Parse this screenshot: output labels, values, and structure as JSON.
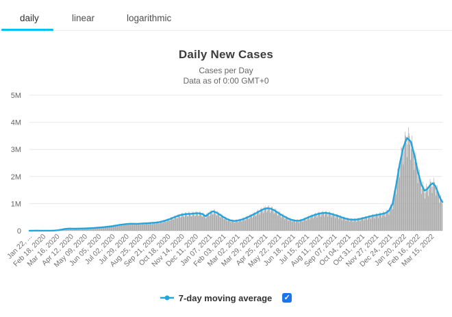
{
  "tabs": {
    "items": [
      {
        "label": "daily",
        "active": true
      },
      {
        "label": "linear",
        "active": false
      },
      {
        "label": "logarithmic",
        "active": false
      }
    ]
  },
  "header": {
    "title": "Daily New Cases",
    "subtitle": "Cases per Day",
    "data_as_of": "Data as of 0:00 GMT+0"
  },
  "legend": {
    "label": "7-day moving average",
    "checkbox_checked": true,
    "check_glyph": "✓"
  },
  "colors": {
    "tab_accent": "#00c3f3",
    "line": "#23a4dd",
    "bars": "#9a9a9a",
    "grid": "#e7e7e7",
    "zero_line": "#d9dee3",
    "axis_text": "#707070",
    "checkbox_blue": "#1b74ea"
  },
  "chart_data": {
    "type": "combo-bar-line",
    "title": "Daily New Cases",
    "subtitle": [
      "Cases per Day",
      "Data as of 0:00 GMT+0"
    ],
    "x_axis": {
      "tick_interval_days": 27,
      "total_days": 804,
      "tick_labels": [
        "Jan 22, ...",
        "Feb 18, 2020",
        "Mar 16, 2020",
        "Apr 12, 2020",
        "May 09, 2020",
        "Jun 05, 2020",
        "Jul 02, 2020",
        "Jul 29, 2020",
        "Aug 25, 2020",
        "Sep 21, 2020",
        "Oct 18, 2020",
        "Nov 14, 2020",
        "Dec 11, 2020",
        "Jan 07, 2021",
        "Feb 03, 2021",
        "Mar 02, 2021",
        "Mar 29, 2021",
        "Apr 25, 2021",
        "May 22, 2021",
        "Jun 18, 2021",
        "Jul 15, 2021",
        "Aug 11, 2021",
        "Sep 07, 2021",
        "Oct 04, 2021",
        "Oct 31, 2021",
        "Nov 27, 2021",
        "Dec 24, 2021",
        "Jan 20, 2022",
        "Feb 16, 2022",
        "Mar 15, 2022"
      ]
    },
    "y_axis": {
      "tick_labels": [
        "0",
        "1M",
        "2M",
        "3M",
        "4M",
        "5M"
      ],
      "tick_values_millions": [
        0,
        1,
        2,
        3,
        4,
        5
      ],
      "ylim": [
        0,
        5000000
      ],
      "gridlines": true
    },
    "legend": {
      "position": "bottom",
      "entries": [
        "7-day moving average"
      ]
    },
    "series": [
      {
        "name": "Daily New Cases",
        "type": "bar",
        "color": "#9a9a9a",
        "derivation": "daily bars oscillate around the 7-day moving average with a weekly reporting pattern",
        "weekly_pattern": [
          0.82,
          0.9,
          1.08,
          1.1,
          1.09,
          1.05,
          0.94
        ],
        "jitter_amplitude": 0.04
      },
      {
        "name": "7-day moving average",
        "type": "line",
        "color": "#23a4dd",
        "unit": "millions of cases per day",
        "points_day_value": [
          [
            0,
            0.001
          ],
          [
            7,
            0.002
          ],
          [
            14,
            0.004
          ],
          [
            21,
            0.003
          ],
          [
            28,
            0.002
          ],
          [
            35,
            0.002
          ],
          [
            42,
            0.003
          ],
          [
            49,
            0.008
          ],
          [
            56,
            0.02
          ],
          [
            63,
            0.042
          ],
          [
            70,
            0.068
          ],
          [
            77,
            0.08
          ],
          [
            84,
            0.079
          ],
          [
            91,
            0.077
          ],
          [
            98,
            0.08
          ],
          [
            105,
            0.084
          ],
          [
            112,
            0.089
          ],
          [
            119,
            0.096
          ],
          [
            126,
            0.104
          ],
          [
            133,
            0.113
          ],
          [
            140,
            0.124
          ],
          [
            147,
            0.137
          ],
          [
            154,
            0.152
          ],
          [
            161,
            0.17
          ],
          [
            168,
            0.192
          ],
          [
            175,
            0.214
          ],
          [
            182,
            0.232
          ],
          [
            189,
            0.248
          ],
          [
            196,
            0.258
          ],
          [
            203,
            0.258
          ],
          [
            210,
            0.256
          ],
          [
            217,
            0.262
          ],
          [
            224,
            0.272
          ],
          [
            231,
            0.279
          ],
          [
            238,
            0.287
          ],
          [
            245,
            0.298
          ],
          [
            252,
            0.315
          ],
          [
            259,
            0.345
          ],
          [
            266,
            0.385
          ],
          [
            273,
            0.43
          ],
          [
            280,
            0.482
          ],
          [
            287,
            0.535
          ],
          [
            294,
            0.578
          ],
          [
            301,
            0.604
          ],
          [
            308,
            0.618
          ],
          [
            315,
            0.625
          ],
          [
            322,
            0.638
          ],
          [
            329,
            0.645
          ],
          [
            336,
            0.622
          ],
          [
            343,
            0.538
          ],
          [
            350,
            0.638
          ],
          [
            357,
            0.718
          ],
          [
            364,
            0.672
          ],
          [
            371,
            0.588
          ],
          [
            378,
            0.5
          ],
          [
            385,
            0.428
          ],
          [
            392,
            0.378
          ],
          [
            399,
            0.362
          ],
          [
            406,
            0.378
          ],
          [
            413,
            0.41
          ],
          [
            420,
            0.458
          ],
          [
            427,
            0.518
          ],
          [
            434,
            0.58
          ],
          [
            441,
            0.65
          ],
          [
            448,
            0.722
          ],
          [
            455,
            0.79
          ],
          [
            462,
            0.828
          ],
          [
            469,
            0.818
          ],
          [
            476,
            0.762
          ],
          [
            483,
            0.678
          ],
          [
            490,
            0.592
          ],
          [
            497,
            0.518
          ],
          [
            504,
            0.448
          ],
          [
            511,
            0.398
          ],
          [
            518,
            0.372
          ],
          [
            525,
            0.372
          ],
          [
            532,
            0.405
          ],
          [
            539,
            0.462
          ],
          [
            546,
            0.518
          ],
          [
            553,
            0.568
          ],
          [
            560,
            0.61
          ],
          [
            567,
            0.642
          ],
          [
            574,
            0.658
          ],
          [
            581,
            0.648
          ],
          [
            588,
            0.618
          ],
          [
            595,
            0.578
          ],
          [
            602,
            0.538
          ],
          [
            609,
            0.488
          ],
          [
            616,
            0.448
          ],
          [
            623,
            0.42
          ],
          [
            630,
            0.408
          ],
          [
            637,
            0.415
          ],
          [
            644,
            0.438
          ],
          [
            651,
            0.472
          ],
          [
            658,
            0.505
          ],
          [
            665,
            0.538
          ],
          [
            672,
            0.565
          ],
          [
            679,
            0.592
          ],
          [
            686,
            0.618
          ],
          [
            693,
            0.652
          ],
          [
            700,
            0.742
          ],
          [
            707,
            1.0
          ],
          [
            714,
            1.7
          ],
          [
            721,
            2.48
          ],
          [
            728,
            3.08
          ],
          [
            735,
            3.42
          ],
          [
            742,
            3.3
          ],
          [
            749,
            2.82
          ],
          [
            756,
            2.2
          ],
          [
            763,
            1.7
          ],
          [
            769,
            1.48
          ],
          [
            775,
            1.54
          ],
          [
            780,
            1.68
          ],
          [
            785,
            1.75
          ],
          [
            790,
            1.66
          ],
          [
            795,
            1.42
          ],
          [
            800,
            1.18
          ],
          [
            804,
            1.06
          ]
        ]
      }
    ]
  }
}
